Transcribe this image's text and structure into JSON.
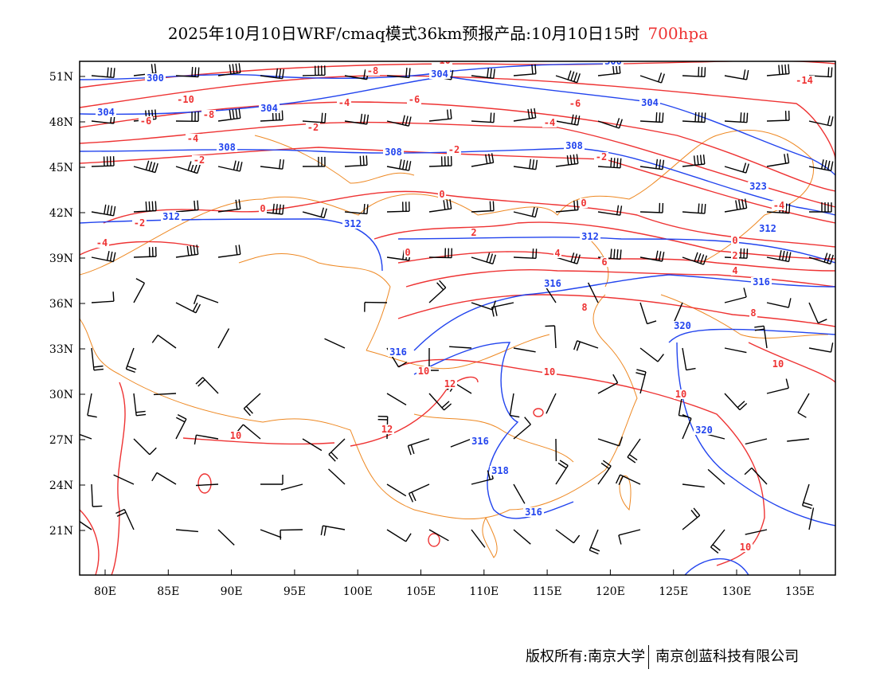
{
  "title": {
    "main": "2025年10月10日WRF/cmaq模式36km预报产品:10月10日15时",
    "level": "700hpa",
    "level_color": "#ee3333"
  },
  "footer": {
    "copyright": "版权所有:南京大学",
    "company": "南京创蓝科技有限公司"
  },
  "map": {
    "lat_ticks": [
      "51N",
      "48N",
      "45N",
      "42N",
      "39N",
      "36N",
      "33N",
      "30N",
      "27N",
      "24N",
      "21N"
    ],
    "lon_ticks": [
      "80E",
      "85E",
      "90E",
      "95E",
      "100E",
      "105E",
      "110E",
      "115E",
      "120E",
      "125E",
      "130E",
      "135E"
    ],
    "temperature_color": "#ee3333",
    "height_color": "#2244ee",
    "border_color": "#ee8822",
    "temperature_labels": [
      "-10",
      "-8",
      "-10",
      "-8",
      "-6",
      "-4",
      "-6",
      "-6",
      "-4",
      "-4",
      "-2",
      "-2",
      "-2",
      "-2",
      "0",
      "0",
      "-2",
      "-4",
      "0",
      "2",
      "0",
      "4",
      "6",
      "8",
      "-4",
      "0",
      "2",
      "4",
      "8",
      "-14",
      "10",
      "12",
      "10",
      "10",
      "10",
      "12",
      "10",
      "10"
    ],
    "height_labels": [
      "300",
      "304",
      "300",
      "304",
      "304",
      "304",
      "308",
      "308",
      "308",
      "312",
      "312",
      "312",
      "312",
      "323",
      "316",
      "316",
      "320",
      "316",
      "320",
      "316",
      "318",
      "316"
    ]
  }
}
